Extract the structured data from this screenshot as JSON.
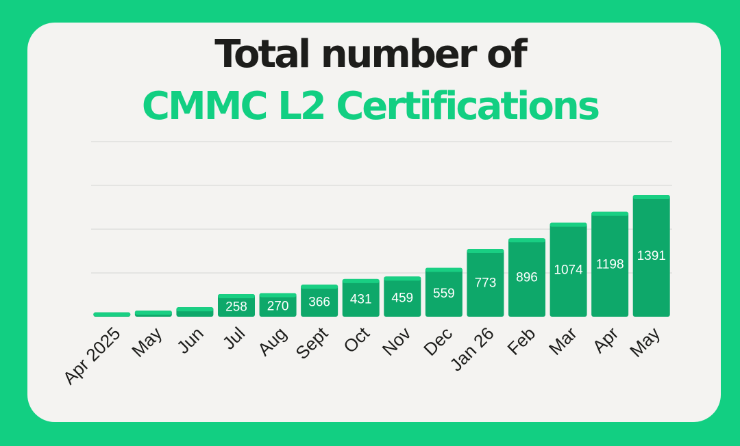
{
  "title_line1": "Total number of",
  "title_line2": "CMMC L2 Certifications",
  "colors": {
    "background": "#12cf82",
    "card": "#f4f3f1",
    "bar": "#0ea86a",
    "bar_cap": "#19cf83",
    "title_dark": "#1d1d1b",
    "title_green": "#12cf82",
    "gridline": "#d4d4d4"
  },
  "chart_data": {
    "type": "bar",
    "categories": [
      "Apr 2025",
      "May",
      "Jun",
      "Jul",
      "Aug",
      "Sept",
      "Oct",
      "Nov",
      "Dec",
      "Jan 26",
      "Feb",
      "Mar",
      "Apr",
      "May"
    ],
    "values": [
      50,
      70,
      108,
      258,
      270,
      366,
      431,
      459,
      559,
      773,
      896,
      1074,
      1198,
      1391
    ],
    "data_labels": [
      "",
      "",
      "",
      "258",
      "270",
      "366",
      "431",
      "459",
      "559",
      "773",
      "896",
      "1074",
      "1198",
      "1391"
    ],
    "ylim": [
      0,
      2000
    ],
    "yticks": [
      0,
      500,
      1000,
      1500,
      2000
    ],
    "grid": true,
    "legend": "none"
  }
}
